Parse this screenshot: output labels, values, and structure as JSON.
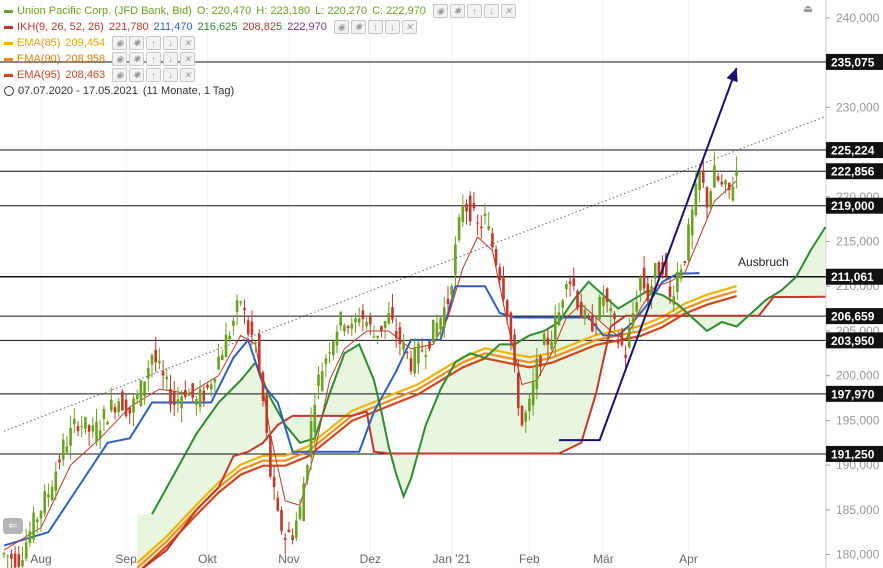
{
  "legend": {
    "main": {
      "name": "Union Pacific Corp. (JFD Bank, Bid)",
      "o": "O: 220,470",
      "h": "H: 223,180",
      "l": "L: 220,270",
      "c": "C: 222,970",
      "color": "#6aa121"
    },
    "ikh": {
      "name": "IKH(9, 26, 52, 26)",
      "v1": "221,780",
      "v2": "211,470",
      "v3": "216,625",
      "v4": "208,825",
      "v5": "222,970",
      "color": "#c0392b"
    },
    "ema85": {
      "name": "EMA(85)",
      "value": "209,454",
      "color": "#f0b400"
    },
    "ema90": {
      "name": "EMA(90)",
      "value": "208,958",
      "color": "#f28c1e"
    },
    "ema95": {
      "name": "EMA(95)",
      "value": "208,463",
      "color": "#d0461b"
    },
    "range": "07.07.2020 - 17.05.2021",
    "range_note": "(11 Monate, 1 Tag)"
  },
  "icons": [
    "eye-icon",
    "gear-icon",
    "up-arrow-icon",
    "down-arrow-icon",
    "close-icon"
  ],
  "chart_data": {
    "type": "candlestick",
    "x_labels": [
      {
        "label": "Aug",
        "index": 10
      },
      {
        "label": "Sep",
        "index": 33
      },
      {
        "label": "Okt",
        "index": 55
      },
      {
        "label": "Nov",
        "index": 77
      },
      {
        "label": "Dez",
        "index": 99
      },
      {
        "label": "Jan '21",
        "index": 121
      },
      {
        "label": "Feb",
        "index": 142
      },
      {
        "label": "Mär",
        "index": 162
      },
      {
        "label": "Apr",
        "index": 185
      }
    ],
    "n_bars": 223,
    "ylim": [
      178500,
      242000
    ],
    "y_ticks": [
      180000,
      185000,
      190000,
      195000,
      200000,
      205000,
      210000,
      215000,
      220000,
      225000,
      230000,
      235000,
      240000
    ],
    "y_tick_labels": [
      "180,000",
      "185,000",
      "190,000",
      "195,000",
      "200,000",
      "205,000",
      "210,000",
      "215,000",
      "220,000",
      "225,000",
      "230,000",
      "235,000",
      "240,000"
    ],
    "levels": [
      {
        "value": 235075,
        "label": "235,075"
      },
      {
        "value": 225224,
        "label": "225,224"
      },
      {
        "value": 222856,
        "label": "222,856"
      },
      {
        "value": 219000,
        "label": "219,000"
      },
      {
        "value": 211061,
        "label": "211,061"
      },
      {
        "value": 206659,
        "label": "206,659"
      },
      {
        "value": 203950,
        "label": "203,950"
      },
      {
        "value": 197970,
        "label": "197,970"
      },
      {
        "value": 191250,
        "label": "191,250"
      }
    ],
    "annotation": {
      "text": "Ausbruch",
      "index": 200,
      "value": 211800
    },
    "trendline_dotted": {
      "from": {
        "index": 0,
        "value": 193800
      },
      "to": {
        "index": 222,
        "value": 229000
      }
    },
    "arrow": {
      "points": [
        {
          "index": 150,
          "value": 192800
        },
        {
          "index": 161,
          "value": 192800
        },
        {
          "index": 198,
          "value": 234400
        }
      ],
      "color": "#1a1070"
    },
    "colors": {
      "up": "#6aa121",
      "down": "#c0392b",
      "tenkan": "#c0392b",
      "kijun": "#2f5fbf",
      "span_a": "#2e8b2e",
      "span_b": "#c0392b",
      "cloud": "#e6f4dc"
    },
    "price_path": [
      [
        0,
        180000
      ],
      [
        4,
        179500
      ],
      [
        8,
        183500
      ],
      [
        12,
        187000
      ],
      [
        16,
        192000
      ],
      [
        20,
        195000
      ],
      [
        24,
        193500
      ],
      [
        28,
        196000
      ],
      [
        31,
        197500
      ],
      [
        34,
        196000
      ],
      [
        37,
        198500
      ],
      [
        40,
        202500
      ],
      [
        43,
        199500
      ],
      [
        46,
        197000
      ],
      [
        49,
        198500
      ],
      [
        52,
        197000
      ],
      [
        55,
        198500
      ],
      [
        58,
        202000
      ],
      [
        61,
        205000
      ],
      [
        64,
        208500
      ],
      [
        66,
        205000
      ],
      [
        68,
        203500
      ],
      [
        70,
        197000
      ],
      [
        72,
        189000
      ],
      [
        74,
        184000
      ],
      [
        76,
        182000
      ],
      [
        78,
        182500
      ],
      [
        80,
        185000
      ],
      [
        82,
        191000
      ],
      [
        84,
        198000
      ],
      [
        86,
        201000
      ],
      [
        88,
        203500
      ],
      [
        90,
        205500
      ],
      [
        92,
        206500
      ],
      [
        94,
        205000
      ],
      [
        96,
        207000
      ],
      [
        98,
        206000
      ],
      [
        100,
        204500
      ],
      [
        102,
        205500
      ],
      [
        104,
        206500
      ],
      [
        106,
        204500
      ],
      [
        108,
        203000
      ],
      [
        110,
        201500
      ],
      [
        112,
        202500
      ],
      [
        114,
        203500
      ],
      [
        116,
        205000
      ],
      [
        118,
        206500
      ],
      [
        120,
        208500
      ],
      [
        122,
        214000
      ],
      [
        124,
        219500
      ],
      [
        126,
        218500
      ],
      [
        128,
        216500
      ],
      [
        130,
        217500
      ],
      [
        132,
        214500
      ],
      [
        134,
        211500
      ],
      [
        136,
        207500
      ],
      [
        138,
        200000
      ],
      [
        140,
        194500
      ],
      [
        142,
        196500
      ],
      [
        144,
        201000
      ],
      [
        146,
        203500
      ],
      [
        148,
        204500
      ],
      [
        150,
        207000
      ],
      [
        152,
        211500
      ],
      [
        154,
        210000
      ],
      [
        156,
        207000
      ],
      [
        158,
        205500
      ],
      [
        160,
        206500
      ],
      [
        162,
        209000
      ],
      [
        164,
        206500
      ],
      [
        166,
        204000
      ],
      [
        168,
        202500
      ],
      [
        170,
        207000
      ],
      [
        172,
        211000
      ],
      [
        174,
        209000
      ],
      [
        176,
        211500
      ],
      [
        178,
        212500
      ],
      [
        180,
        208500
      ],
      [
        182,
        211500
      ],
      [
        184,
        213500
      ],
      [
        186,
        218000
      ],
      [
        188,
        222500
      ],
      [
        190,
        219500
      ],
      [
        192,
        222500
      ],
      [
        194,
        221000
      ],
      [
        196,
        220500
      ],
      [
        198,
        223000
      ]
    ],
    "tenkan_path": [
      [
        0,
        180500
      ],
      [
        10,
        183000
      ],
      [
        18,
        190000
      ],
      [
        26,
        193000
      ],
      [
        34,
        196500
      ],
      [
        42,
        198500
      ],
      [
        50,
        198000
      ],
      [
        58,
        200000
      ],
      [
        64,
        204500
      ],
      [
        68,
        203500
      ],
      [
        72,
        193500
      ],
      [
        76,
        186000
      ],
      [
        80,
        185500
      ],
      [
        84,
        191500
      ],
      [
        88,
        199500
      ],
      [
        92,
        203000
      ],
      [
        98,
        205000
      ],
      [
        104,
        205000
      ],
      [
        110,
        203000
      ],
      [
        116,
        203500
      ],
      [
        120,
        206500
      ],
      [
        124,
        212000
      ],
      [
        128,
        215500
      ],
      [
        132,
        214000
      ],
      [
        136,
        206000
      ],
      [
        140,
        199000
      ],
      [
        144,
        199500
      ],
      [
        148,
        202500
      ],
      [
        152,
        206500
      ],
      [
        156,
        208000
      ],
      [
        160,
        206500
      ],
      [
        164,
        205000
      ],
      [
        168,
        204000
      ],
      [
        172,
        207500
      ],
      [
        176,
        210000
      ],
      [
        180,
        210500
      ],
      [
        184,
        211500
      ],
      [
        188,
        215500
      ],
      [
        192,
        219500
      ],
      [
        198,
        221800
      ]
    ],
    "kijun_path": [
      [
        0,
        181000
      ],
      [
        12,
        182500
      ],
      [
        20,
        187500
      ],
      [
        28,
        192500
      ],
      [
        34,
        193000
      ],
      [
        40,
        197000
      ],
      [
        48,
        197000
      ],
      [
        56,
        197000
      ],
      [
        62,
        202000
      ],
      [
        66,
        204000
      ],
      [
        70,
        199000
      ],
      [
        74,
        197000
      ],
      [
        78,
        191500
      ],
      [
        84,
        191500
      ],
      [
        90,
        191500
      ],
      [
        96,
        191500
      ],
      [
        100,
        196000
      ],
      [
        106,
        200500
      ],
      [
        110,
        204000
      ],
      [
        114,
        204000
      ],
      [
        118,
        204000
      ],
      [
        122,
        210000
      ],
      [
        126,
        210000
      ],
      [
        130,
        210000
      ],
      [
        134,
        207000
      ],
      [
        138,
        206500
      ],
      [
        142,
        206500
      ],
      [
        146,
        206500
      ],
      [
        150,
        206500
      ],
      [
        154,
        206500
      ],
      [
        158,
        206500
      ],
      [
        162,
        204500
      ],
      [
        166,
        204500
      ],
      [
        170,
        206000
      ],
      [
        174,
        208000
      ],
      [
        178,
        210500
      ],
      [
        182,
        211400
      ],
      [
        188,
        211470
      ]
    ],
    "span_a_path": [
      [
        40,
        184500
      ],
      [
        46,
        189000
      ],
      [
        52,
        193500
      ],
      [
        58,
        197000
      ],
      [
        64,
        199500
      ],
      [
        68,
        201500
      ],
      [
        72,
        197500
      ],
      [
        76,
        194500
      ],
      [
        80,
        192500
      ],
      [
        84,
        193000
      ],
      [
        88,
        198000
      ],
      [
        92,
        202500
      ],
      [
        96,
        203500
      ],
      [
        100,
        199500
      ],
      [
        102,
        196000
      ],
      [
        104,
        192000
      ],
      [
        106,
        189000
      ],
      [
        108,
        186500
      ],
      [
        110,
        188500
      ],
      [
        114,
        194500
      ],
      [
        118,
        198500
      ],
      [
        122,
        201500
      ],
      [
        126,
        202500
      ],
      [
        130,
        202000
      ],
      [
        134,
        203500
      ],
      [
        138,
        203500
      ],
      [
        142,
        204500
      ],
      [
        146,
        205000
      ],
      [
        150,
        206000
      ],
      [
        154,
        208500
      ],
      [
        158,
        210500
      ],
      [
        162,
        209000
      ],
      [
        166,
        207500
      ],
      [
        170,
        208500
      ],
      [
        174,
        209500
      ],
      [
        178,
        209000
      ],
      [
        182,
        208000
      ],
      [
        186,
        206500
      ],
      [
        190,
        205000
      ],
      [
        194,
        206000
      ],
      [
        198,
        205500
      ],
      [
        202,
        207000
      ],
      [
        206,
        208500
      ],
      [
        210,
        209500
      ],
      [
        214,
        211000
      ],
      [
        218,
        214000
      ],
      [
        222,
        216625
      ]
    ],
    "span_b_path": [
      [
        36,
        178000
      ],
      [
        44,
        180500
      ],
      [
        52,
        185000
      ],
      [
        58,
        187500
      ],
      [
        62,
        191000
      ],
      [
        66,
        191500
      ],
      [
        70,
        192500
      ],
      [
        74,
        194500
      ],
      [
        78,
        195500
      ],
      [
        82,
        195500
      ],
      [
        86,
        195500
      ],
      [
        90,
        195500
      ],
      [
        94,
        195500
      ],
      [
        98,
        196000
      ],
      [
        100,
        191500
      ],
      [
        104,
        191300
      ],
      [
        110,
        191300
      ],
      [
        116,
        191300
      ],
      [
        122,
        191300
      ],
      [
        128,
        191300
      ],
      [
        134,
        191300
      ],
      [
        140,
        191300
      ],
      [
        146,
        191300
      ],
      [
        150,
        191300
      ],
      [
        156,
        192500
      ],
      [
        160,
        198000
      ],
      [
        164,
        205500
      ],
      [
        168,
        206700
      ],
      [
        172,
        206700
      ],
      [
        176,
        206700
      ],
      [
        180,
        206700
      ],
      [
        184,
        206700
      ],
      [
        188,
        206700
      ],
      [
        192,
        206700
      ],
      [
        196,
        206700
      ],
      [
        200,
        206700
      ],
      [
        204,
        206700
      ],
      [
        208,
        208800
      ],
      [
        214,
        208800
      ],
      [
        222,
        208825
      ]
    ],
    "ema_path": [
      [
        36,
        178500
      ],
      [
        44,
        181500
      ],
      [
        52,
        185000
      ],
      [
        58,
        187500
      ],
      [
        64,
        189500
      ],
      [
        70,
        190500
      ],
      [
        76,
        190500
      ],
      [
        82,
        191500
      ],
      [
        88,
        193500
      ],
      [
        94,
        195500
      ],
      [
        100,
        196500
      ],
      [
        106,
        197500
      ],
      [
        112,
        198500
      ],
      [
        118,
        200000
      ],
      [
        124,
        201500
      ],
      [
        130,
        202500
      ],
      [
        136,
        202000
      ],
      [
        142,
        201500
      ],
      [
        148,
        202000
      ],
      [
        154,
        203000
      ],
      [
        160,
        204000
      ],
      [
        166,
        204500
      ],
      [
        172,
        205000
      ],
      [
        178,
        206000
      ],
      [
        184,
        207500
      ],
      [
        190,
        208500
      ],
      [
        198,
        209454
      ]
    ]
  }
}
